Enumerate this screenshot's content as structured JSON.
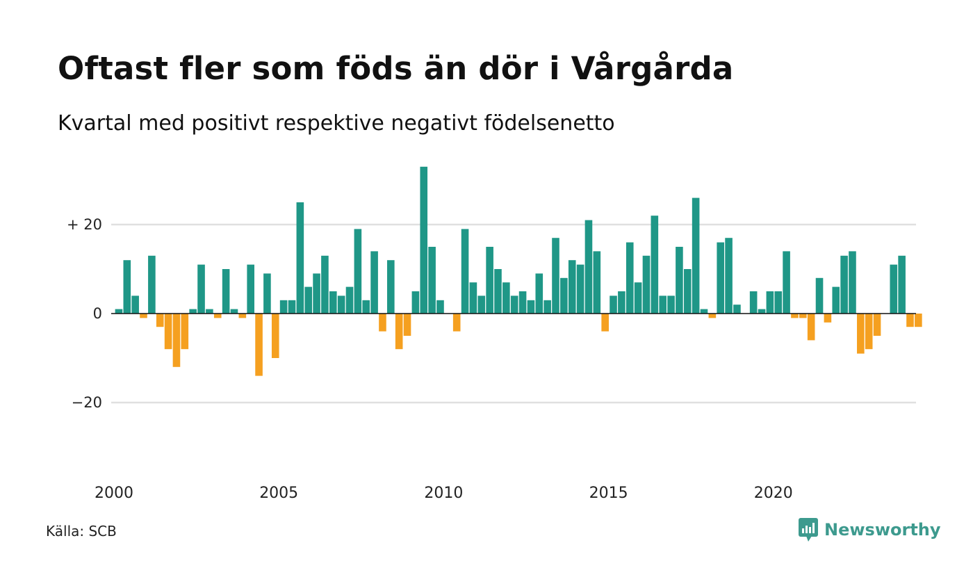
{
  "header": {
    "title": "Oftast fler som föds än dör i Vårgårda",
    "subtitle": "Kvartal med positivt respektive negativt födelsenetto"
  },
  "footer": {
    "source": "Källa: SCB",
    "brand": "Newsworthy",
    "brand_icon": "chart-speech-bubble-icon"
  },
  "colors": {
    "positive": "#1f9787",
    "negative": "#f5a020",
    "gridline": "#e0e0e0",
    "zeroline": "#111111",
    "brand": "#3d9a8e"
  },
  "chart_data": {
    "type": "bar",
    "title": "Oftast fler som föds än dör i Vårgårda",
    "subtitle": "Kvartal med positivt respektive negativt födelsenetto",
    "xlabel": "",
    "ylabel": "",
    "ylim": [
      -38,
      38
    ],
    "yticks": [
      {
        "value": 20,
        "label": "+ 20"
      },
      {
        "value": 0,
        "label": "0"
      },
      {
        "value": -20,
        "label": "−20"
      }
    ],
    "xlim": [
      2000,
      2024.75
    ],
    "xticks": [
      {
        "value": 2000,
        "label": "2000"
      },
      {
        "value": 2005,
        "label": "2005"
      },
      {
        "value": 2010,
        "label": "2010"
      },
      {
        "value": 2015,
        "label": "2015"
      },
      {
        "value": 2020,
        "label": "2020"
      }
    ],
    "grid": true,
    "start_year": 2000,
    "start_quarter": 1,
    "period": "quarter",
    "values": [
      1,
      12,
      4,
      -1,
      13,
      -3,
      -8,
      -12,
      -8,
      1,
      11,
      1,
      -1,
      10,
      1,
      -1,
      11,
      -14,
      9,
      -10,
      3,
      3,
      25,
      6,
      9,
      13,
      5,
      4,
      6,
      19,
      3,
      14,
      -4,
      12,
      -8,
      -5,
      5,
      33,
      15,
      3,
      0,
      -4,
      19,
      7,
      4,
      15,
      10,
      7,
      4,
      5,
      3,
      9,
      3,
      17,
      8,
      12,
      11,
      21,
      14,
      -4,
      4,
      5,
      16,
      7,
      13,
      22,
      4,
      4,
      15,
      10,
      26,
      1,
      -1,
      16,
      17,
      2,
      0,
      5,
      1,
      5,
      5,
      14,
      -1,
      -1,
      -6,
      8,
      -2,
      6,
      13,
      14,
      -9,
      -8,
      -5,
      0,
      11,
      13,
      -3,
      -3
    ]
  }
}
